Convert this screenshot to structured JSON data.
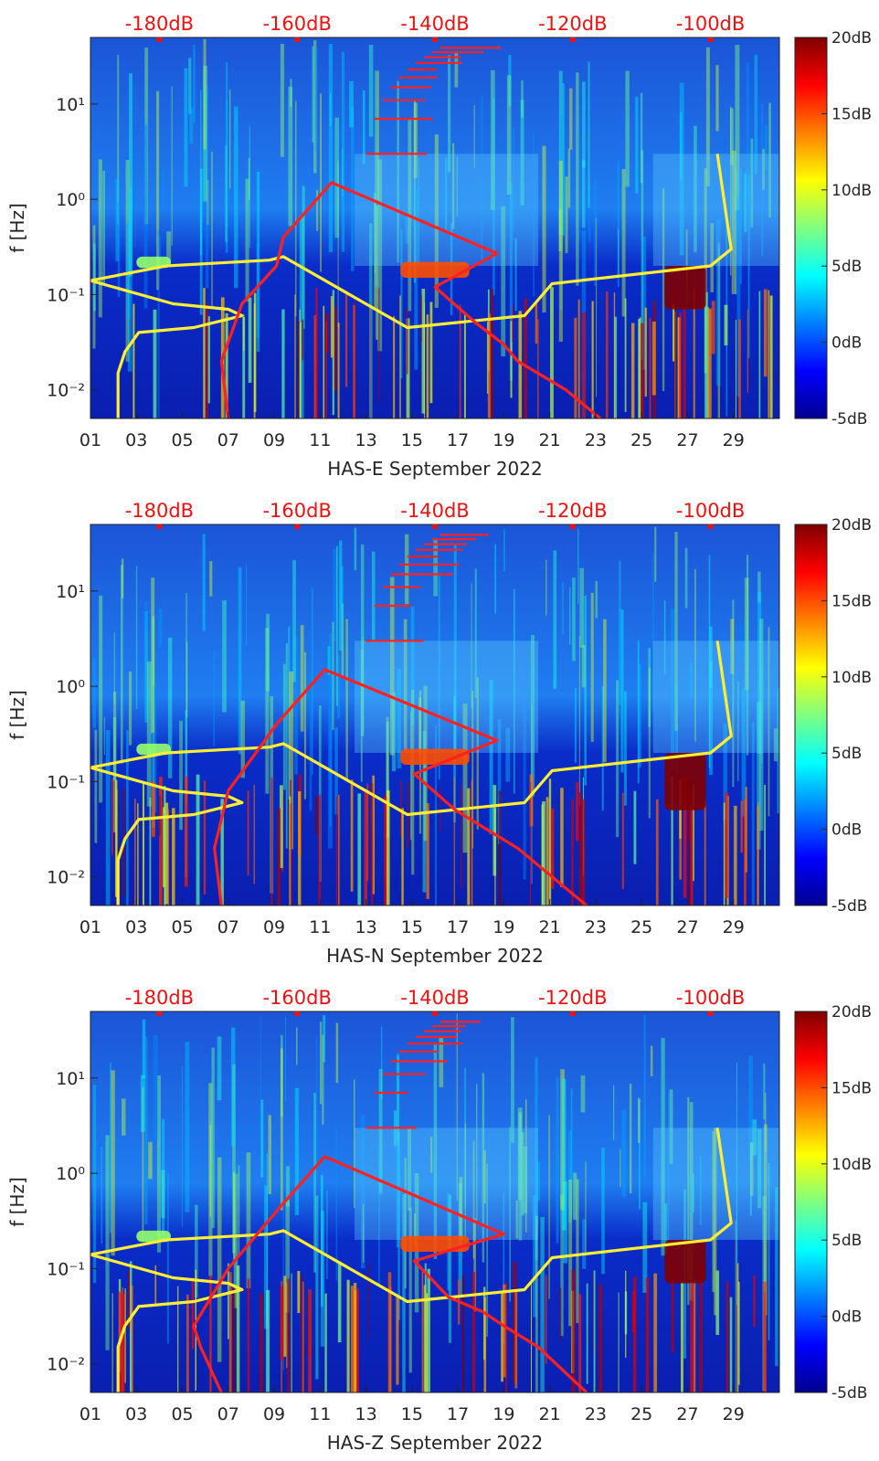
{
  "ylabel": "f [Hz]",
  "x_ticks": [
    "01",
    "03",
    "05",
    "07",
    "09",
    "11",
    "13",
    "15",
    "17",
    "19",
    "21",
    "23",
    "25",
    "27",
    "29"
  ],
  "y_ticks": [
    "10⁻²",
    "10⁻¹",
    "10⁰",
    "10¹"
  ],
  "top_ticks": [
    "-180dB",
    "-160dB",
    "-140dB",
    "-120dB",
    "-100dB"
  ],
  "colorbar_ticks": [
    "20dB",
    "15dB",
    "10dB",
    "5dB",
    "0dB",
    "-5dB"
  ],
  "colors": {
    "model_curve": "#ff2020",
    "noise_model": "#ffee33",
    "top_axis_text": "#ee1111"
  },
  "chart_data": [
    {
      "type": "heatmap",
      "xlabel": "HAS-E September 2022",
      "x_range_days": [
        1,
        31
      ],
      "y_range_hz": [
        0.005,
        50
      ],
      "y_scale": "log",
      "top_axis_range_db": [
        -190,
        -90
      ],
      "colorbar_range_db": [
        -5,
        20
      ],
      "bright_bands": [
        {
          "day_start": 14.5,
          "day_end": 17.5,
          "f_low": 0.15,
          "f_high": 0.22,
          "level_db": 15
        },
        {
          "day_start": 26.0,
          "day_end": 27.8,
          "f_low": 0.07,
          "f_high": 0.2,
          "level_db": 20
        },
        {
          "day_start": 3.0,
          "day_end": 4.5,
          "f_low": 0.19,
          "f_high": 0.25,
          "level_db": 8
        }
      ],
      "series": [
        {
          "db": [
            -186,
            -186,
            -185,
            -183,
            -175,
            -168,
            -170,
            -178,
            -190,
            -179,
            -164,
            -162,
            -144,
            -127,
            -123,
            -100,
            -97,
            -99
          ],
          "hz": [
            0.005,
            0.015,
            0.025,
            0.04,
            0.045,
            0.06,
            0.07,
            0.08,
            0.14,
            0.2,
            0.23,
            0.25,
            0.045,
            0.06,
            0.13,
            0.2,
            0.3,
            3
          ]
        },
        {
          "db": [
            -170,
            -171,
            -168,
            -163,
            -162,
            -155,
            -131,
            -140,
            -134,
            -130,
            -128,
            -121,
            -116
          ],
          "hz": [
            0.005,
            0.02,
            0.08,
            0.2,
            0.4,
            1.5,
            0.27,
            0.12,
            0.05,
            0.03,
            0.02,
            0.01,
            0.005
          ]
        }
      ]
    },
    {
      "type": "heatmap",
      "xlabel": "HAS-N September 2022",
      "x_range_days": [
        1,
        31
      ],
      "y_range_hz": [
        0.005,
        50
      ],
      "y_scale": "log",
      "top_axis_range_db": [
        -190,
        -90
      ],
      "colorbar_range_db": [
        -5,
        20
      ],
      "bright_bands": [
        {
          "day_start": 14.5,
          "day_end": 17.5,
          "f_low": 0.15,
          "f_high": 0.22,
          "level_db": 15
        },
        {
          "day_start": 26.0,
          "day_end": 27.8,
          "f_low": 0.05,
          "f_high": 0.2,
          "level_db": 20
        },
        {
          "day_start": 3.0,
          "day_end": 4.5,
          "f_low": 0.19,
          "f_high": 0.25,
          "level_db": 8
        }
      ],
      "series": [
        {
          "db": [
            -186,
            -186,
            -185,
            -183,
            -175,
            -168,
            -170,
            -178,
            -190,
            -179,
            -164,
            -162,
            -144,
            -127,
            -123,
            -100,
            -97,
            -99
          ],
          "hz": [
            0.005,
            0.015,
            0.025,
            0.04,
            0.045,
            0.06,
            0.07,
            0.08,
            0.14,
            0.2,
            0.23,
            0.25,
            0.045,
            0.06,
            0.13,
            0.2,
            0.3,
            3
          ]
        },
        {
          "db": [
            -171,
            -172,
            -170,
            -166,
            -163,
            -156,
            -131,
            -143,
            -137,
            -132,
            -128,
            -123,
            -118
          ],
          "hz": [
            0.005,
            0.02,
            0.08,
            0.2,
            0.4,
            1.5,
            0.27,
            0.12,
            0.05,
            0.03,
            0.02,
            0.01,
            0.005
          ]
        }
      ]
    },
    {
      "type": "heatmap",
      "xlabel": "HAS-Z September 2022",
      "x_range_days": [
        1,
        31
      ],
      "y_range_hz": [
        0.005,
        50
      ],
      "y_scale": "log",
      "top_axis_range_db": [
        -190,
        -90
      ],
      "colorbar_range_db": [
        -5,
        20
      ],
      "bright_bands": [
        {
          "day_start": 14.5,
          "day_end": 17.5,
          "f_low": 0.15,
          "f_high": 0.22,
          "level_db": 15
        },
        {
          "day_start": 26.0,
          "day_end": 27.8,
          "f_low": 0.07,
          "f_high": 0.2,
          "level_db": 20
        },
        {
          "day_start": 3.0,
          "day_end": 4.5,
          "f_low": 0.19,
          "f_high": 0.25,
          "level_db": 8
        }
      ],
      "series": [
        {
          "db": [
            -186,
            -186,
            -185,
            -183,
            -175,
            -168,
            -170,
            -178,
            -190,
            -179,
            -164,
            -162,
            -144,
            -127,
            -123,
            -100,
            -97,
            -99
          ],
          "hz": [
            0.005,
            0.015,
            0.025,
            0.04,
            0.045,
            0.06,
            0.07,
            0.08,
            0.14,
            0.2,
            0.23,
            0.25,
            0.045,
            0.06,
            0.13,
            0.2,
            0.3,
            3
          ]
        },
        {
          "db": [
            -171,
            -174,
            -175,
            -170,
            -163,
            -156,
            -130,
            -143,
            -138,
            -133,
            -130,
            -125,
            -118
          ],
          "hz": [
            0.005,
            0.015,
            0.025,
            0.1,
            0.4,
            1.5,
            0.23,
            0.12,
            0.05,
            0.035,
            0.025,
            0.015,
            0.005
          ]
        }
      ]
    }
  ]
}
